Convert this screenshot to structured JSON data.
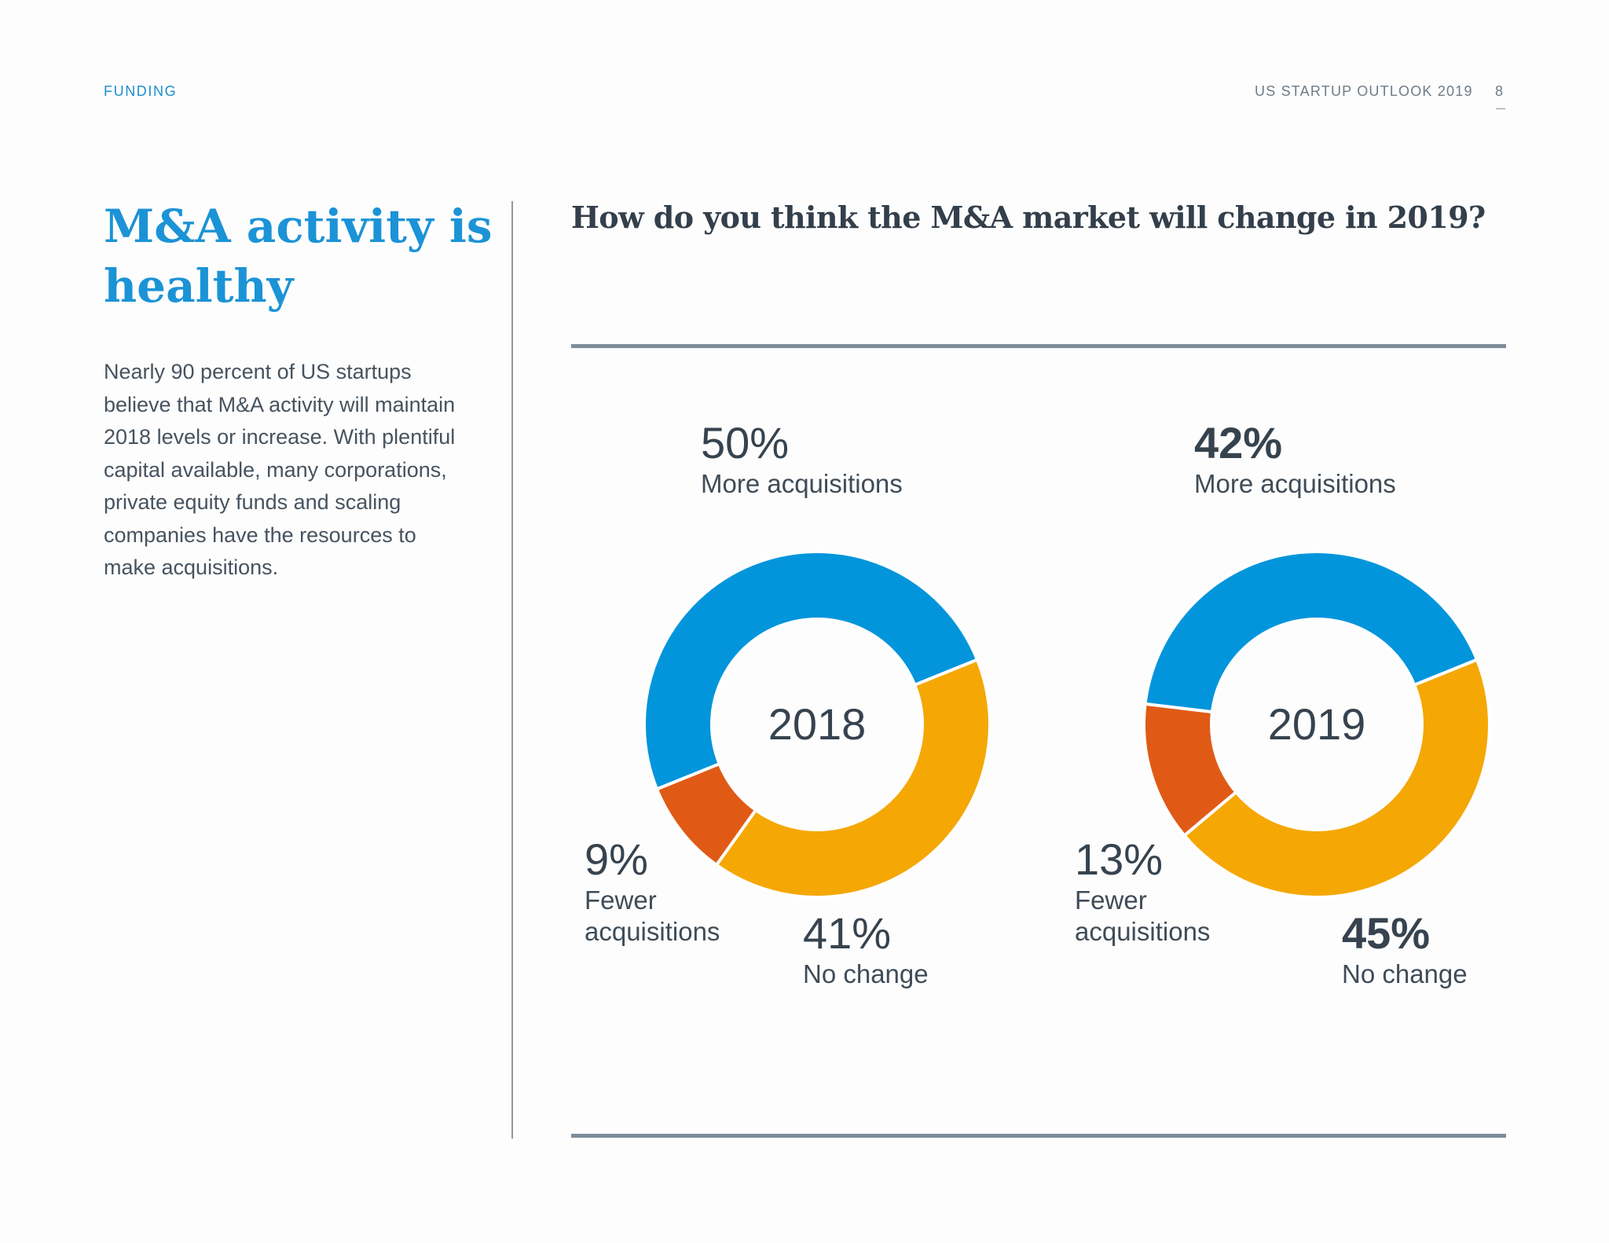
{
  "header": {
    "section": "FUNDING",
    "publication": "US STARTUP OUTLOOK 2019",
    "page_number": "8"
  },
  "sidebar": {
    "headline": "M&A activity is healthy",
    "body": "Nearly 90 percent of US startups believe that M&A activity will maintain 2018 levels or increase. With plentiful capital available, many corporations, private equity funds and scaling companies have the resources to make acquisitions."
  },
  "colors": {
    "more_acquisitions": "#0295dc",
    "no_change": "#f5a704",
    "fewer_acquisitions": "#e05a16",
    "accent_blue": "#1b93d6",
    "rule_gray": "#7d8c99"
  },
  "chart_data": [
    {
      "type": "pie",
      "title": "How do you think the M&A market will change in 2019?",
      "center_label": "2018",
      "slices": [
        {
          "label": "More acquisitions",
          "value": 50,
          "display": "50%"
        },
        {
          "label": "No change",
          "value": 41,
          "display": "41%"
        },
        {
          "label": "Fewer acquisitions",
          "value": 9,
          "display": "9%"
        }
      ]
    },
    {
      "type": "pie",
      "title": "How do you think the M&A market will change in 2019?",
      "center_label": "2019",
      "slices": [
        {
          "label": "More acquisitions",
          "value": 42,
          "display": "42%"
        },
        {
          "label": "No change",
          "value": 45,
          "display": "45%"
        },
        {
          "label": "Fewer acquisitions",
          "value": 13,
          "display": "13%"
        }
      ]
    }
  ]
}
